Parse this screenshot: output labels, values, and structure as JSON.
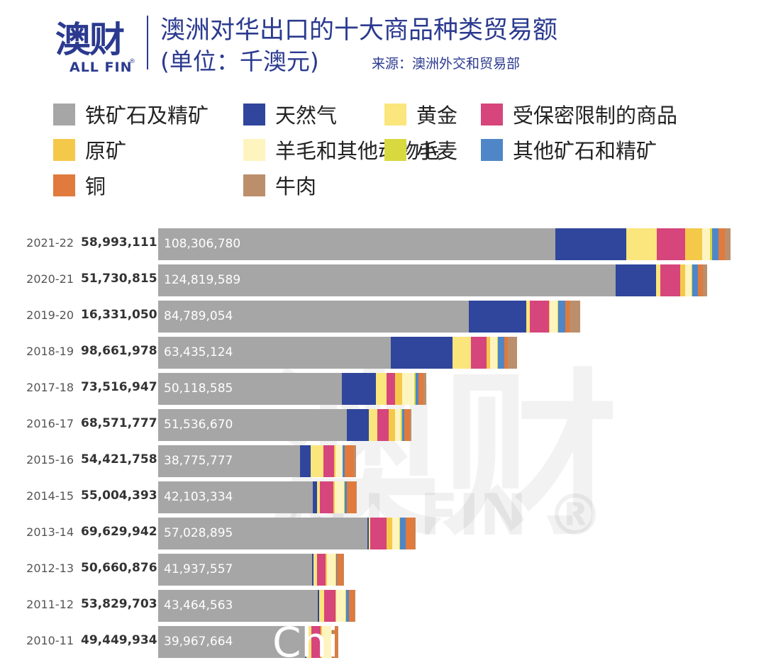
{
  "header": {
    "logo_cn": "澳财",
    "logo_en": "ALL FIN",
    "logo_reg": "®",
    "title": "澳洲对华出口的十大商品种类贸易额",
    "subtitle": "(单位：千澳元)",
    "source": "来源：澳洲外交和贸易部"
  },
  "watermark": {
    "cn": "澳财",
    "en": "ALL FIN ®"
  },
  "overlay_text": "Chi",
  "chart_data": {
    "type": "bar",
    "orientation": "horizontal",
    "stacked": true,
    "title": "澳洲对华出口的十大商品种类贸易额",
    "subtitle": "(单位：千澳元)",
    "source": "来源：澳洲外交和贸易部",
    "categories": [
      "2021-22",
      "2020-21",
      "2019-20",
      "2018-19",
      "2017-18",
      "2016-17",
      "2015-16",
      "2014-15",
      "2013-14",
      "2012-13",
      "2011-12",
      "2010-11"
    ],
    "totals_label": [
      "58,993,111",
      "51,730,815",
      "16,331,050",
      "98,661,978",
      "73,516,947",
      "68,571,777",
      "54,421,758",
      "55,004,393",
      "69,629,942",
      "50,660,876",
      "53,829,703",
      "49,449,934"
    ],
    "iron_ore_label": [
      "108,306,780",
      "124,819,589",
      "84,789,054",
      "63,435,124",
      "50,118,585",
      "51,536,670",
      "38,775,777",
      "42,103,334",
      "57,028,895",
      "41,937,557",
      "43,464,563",
      "39,967,664"
    ],
    "series": [
      {
        "name": "铁矿石及精矿",
        "color": "#a6a6a6",
        "values": [
          108306780,
          124819589,
          84789054,
          63435124,
          50118585,
          51536670,
          38775777,
          42103334,
          57028895,
          41937557,
          43464563,
          39967664
        ]
      },
      {
        "name": "天然气",
        "color": "#2f469c",
        "values": [
          19300000,
          10900000,
          15600000,
          16800000,
          9200000,
          6000000,
          2800000,
          1300000,
          500000,
          500000,
          500000,
          500000
        ]
      },
      {
        "name": "黄金",
        "color": "#fbe57d",
        "values": [
          8400000,
          1300000,
          1000000,
          5000000,
          2900000,
          2300000,
          3400000,
          700000,
          300000,
          800000,
          1300000,
          1300000
        ]
      },
      {
        "name": "受保密限制的商品",
        "color": "#d6457b",
        "values": [
          7600000,
          5300000,
          5100000,
          4400000,
          2300000,
          3100000,
          3000000,
          3700000,
          4400000,
          2400000,
          3000000,
          2600000
        ]
      },
      {
        "name": "原矿",
        "color": "#f4c94a",
        "values": [
          4800000,
          1300000,
          300000,
          900000,
          2100000,
          1600000,
          300000,
          400000,
          1500000,
          300000,
          200000,
          300000
        ]
      },
      {
        "name": "羊毛和其他动物毛",
        "color": "#fdf4c0",
        "values": [
          2100000,
          1800000,
          2100000,
          2000000,
          3200000,
          1700000,
          2000000,
          2400000,
          2000000,
          2400000,
          2600000,
          2500000
        ]
      },
      {
        "name": "小麦",
        "color": "#d7d93f",
        "values": [
          500000,
          300000,
          200000,
          100000,
          300000,
          200000,
          100000,
          200000,
          300000,
          200000,
          200000,
          200000
        ]
      },
      {
        "name": "其他矿石和精矿",
        "color": "#4f86c7",
        "values": [
          1800000,
          1400000,
          2000000,
          1700000,
          800000,
          700000,
          400000,
          700000,
          1500000,
          200000,
          700000,
          200000
        ]
      },
      {
        "name": "铜",
        "color": "#e07a3d",
        "values": [
          1700000,
          1500000,
          1100000,
          1000000,
          1500000,
          1600000,
          2700000,
          2400000,
          2500000,
          1800000,
          1600000,
          1300000
        ]
      },
      {
        "name": "牛肉",
        "color": "#bb8f6c",
        "values": [
          1600000,
          1100000,
          2900000,
          2600000,
          700000,
          300000,
          500000,
          200000,
          200000,
          200000,
          200000,
          200000
        ]
      }
    ]
  }
}
